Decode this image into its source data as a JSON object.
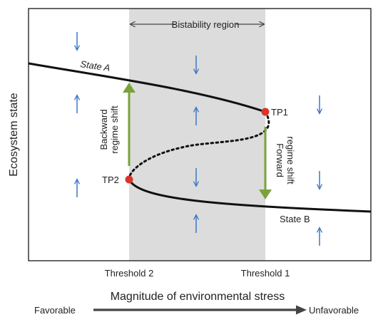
{
  "title": "",
  "region_label": "Bistability region",
  "y_axis_label": "Ecosystem state",
  "x_axis_label": "Magnitude of environmental stress",
  "x_ticks": [
    "Threshold 2",
    "Threshold 1"
  ],
  "gradient": {
    "start_label": "Favorable",
    "end_label": "Unfavorable"
  },
  "curve_labels": {
    "upper": "State A",
    "lower": "State B"
  },
  "tipping_points": [
    "TP1",
    "TP2"
  ],
  "shift_labels": {
    "backward": [
      "Backward",
      "regime shift"
    ],
    "forward": [
      "Forward",
      "regime shift"
    ]
  },
  "colors": {
    "region": "#dcdcdc",
    "curve": "#111111",
    "tipping_point": "#d9342b",
    "shift_arrow": "#7aa23a",
    "flow_arrow": "#3b78c2"
  },
  "icons": {
    "flow_up": "arrow-up-icon",
    "flow_down": "arrow-down-icon",
    "gradient": "long-right-arrow-icon"
  }
}
